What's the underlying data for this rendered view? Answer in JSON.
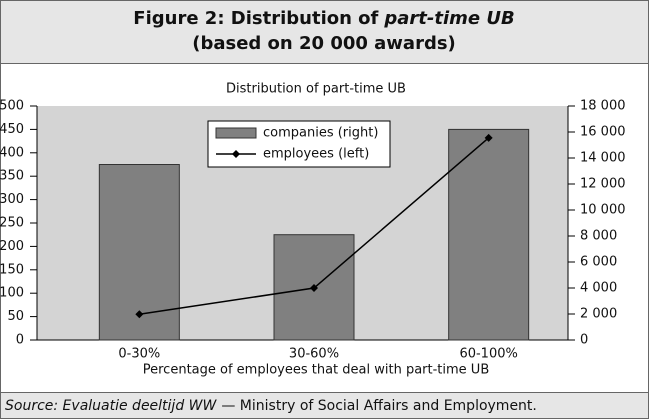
{
  "figure": {
    "title": [
      "Figure 2: Distribution of",
      "part-time UB",
      "(based on 20 000 awards)"
    ],
    "source": [
      "Source: Evaluatie deeltijd WW",
      "— Ministry of Social Affairs and Employment."
    ]
  },
  "chart_data": {
    "type": "bar_line",
    "title": "Distribution of part-time UB",
    "x_label": "Percentage of employees that deal with part-time UB",
    "categories": [
      "0-30%",
      "30-60%",
      "60-100%"
    ],
    "series": [
      {
        "name": "companies (right)",
        "color": "#808080",
        "axis": "y2",
        "kind": "bar",
        "values": [
          13500,
          8100,
          16200
        ]
      },
      {
        "name": "employees (left)",
        "color": "#000000",
        "kind": "line",
        "values": [
          55,
          111,
          432
        ]
      }
    ],
    "ylim": [
      0,
      500
    ],
    "yticks": [
      0,
      50,
      100,
      150,
      200,
      250,
      300,
      350,
      400,
      450,
      500
    ],
    "y2lim": [
      0,
      18000
    ],
    "y2ticks": [
      0,
      {
        "value": 2000,
        "label": "2 000"
      },
      {
        "value": 4000,
        "label": "4 000"
      },
      {
        "value": 6000,
        "label": "6 000"
      },
      {
        "value": 8000,
        "label": "8 000"
      },
      {
        "value": 10000,
        "label": "10 000"
      },
      {
        "value": 12000,
        "label": "12 000"
      },
      {
        "value": 14000,
        "label": "14 000"
      },
      {
        "value": 16000,
        "label": "16 000"
      },
      {
        "value": 18000,
        "label": "18 000"
      }
    ],
    "legend": "top",
    "plot_background": "#d4d4d4"
  }
}
